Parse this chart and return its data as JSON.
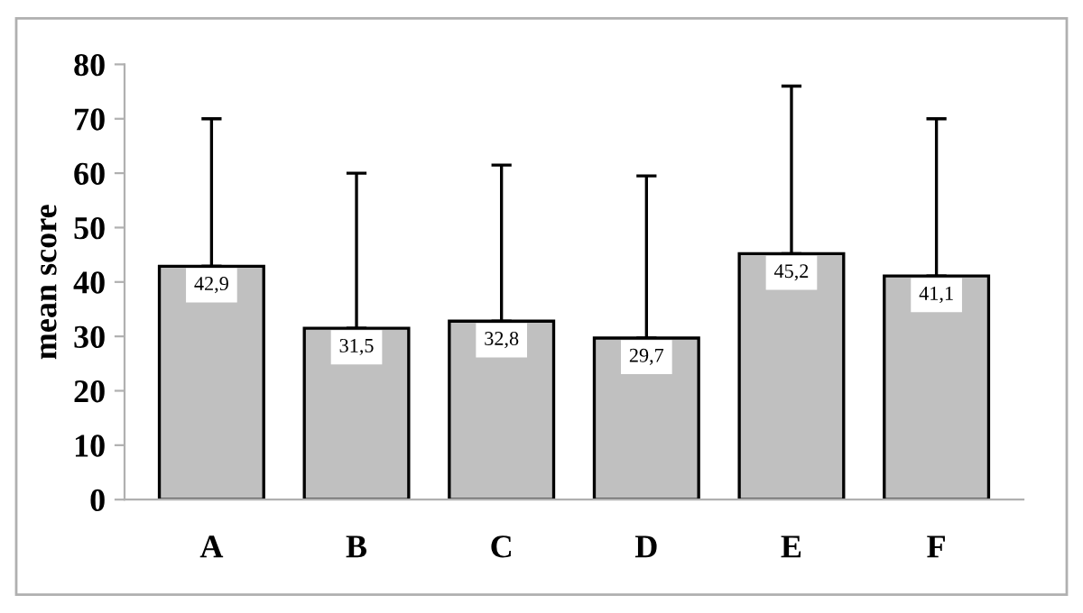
{
  "chart_data": {
    "type": "bar",
    "ylabel": "mean score",
    "categories": [
      "A",
      "B",
      "C",
      "D",
      "E",
      "F"
    ],
    "values": [
      42.9,
      31.5,
      32.8,
      29.7,
      45.2,
      41.1
    ],
    "value_labels": [
      "42,9",
      "31,5",
      "32,8",
      "29,7",
      "45,2",
      "41,1"
    ],
    "errors": [
      [
        42.9,
        70
      ],
      [
        31.5,
        60
      ],
      [
        32.8,
        61.5
      ],
      [
        29.7,
        59.5
      ],
      [
        45.2,
        76
      ],
      [
        41.1,
        70
      ]
    ],
    "color": "#c0c0c0",
    "ylim": [
      0,
      80
    ],
    "yticks": [
      0,
      10,
      20,
      30,
      40,
      50,
      60,
      70,
      80
    ],
    "grid": false,
    "legend": false
  }
}
